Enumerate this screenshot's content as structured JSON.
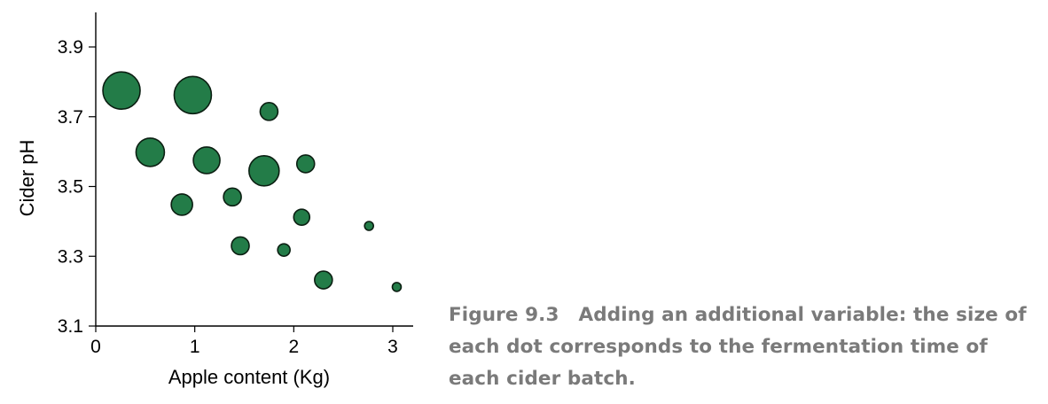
{
  "chart_data": {
    "type": "scatter",
    "xlabel": "Apple content (Kg)",
    "ylabel": "Cider pH",
    "xlim": [
      0,
      3.2
    ],
    "ylim": [
      3.1,
      4.0
    ],
    "xticks": [
      0,
      1,
      2,
      3
    ],
    "xtick_labels": [
      "0",
      "1",
      "2",
      "3"
    ],
    "yticks": [
      3.1,
      3.3,
      3.5,
      3.7,
      3.9
    ],
    "ytick_labels": [
      "3.1",
      "3.3",
      "3.5",
      "3.7",
      "3.9"
    ],
    "size_encodes": "fermentation time",
    "grid": false,
    "color": "#237c48",
    "points": [
      {
        "x": 0.26,
        "y": 3.775,
        "size": 21
      },
      {
        "x": 0.98,
        "y": 3.762,
        "size": 21
      },
      {
        "x": 1.75,
        "y": 3.715,
        "size": 10
      },
      {
        "x": 0.55,
        "y": 3.598,
        "size": 16
      },
      {
        "x": 1.12,
        "y": 3.575,
        "size": 15
      },
      {
        "x": 1.7,
        "y": 3.545,
        "size": 17
      },
      {
        "x": 2.12,
        "y": 3.565,
        "size": 10
      },
      {
        "x": 0.87,
        "y": 3.448,
        "size": 12
      },
      {
        "x": 1.38,
        "y": 3.47,
        "size": 10
      },
      {
        "x": 2.08,
        "y": 3.412,
        "size": 9
      },
      {
        "x": 2.76,
        "y": 3.387,
        "size": 5
      },
      {
        "x": 1.46,
        "y": 3.33,
        "size": 10
      },
      {
        "x": 1.9,
        "y": 3.318,
        "size": 7
      },
      {
        "x": 2.3,
        "y": 3.232,
        "size": 10
      },
      {
        "x": 3.04,
        "y": 3.212,
        "size": 5
      }
    ]
  },
  "caption": {
    "figure_number": "Figure 9.3",
    "text": "Adding an additional variable: the size of each dot corresponds to the fermentation time of each cider batch."
  }
}
